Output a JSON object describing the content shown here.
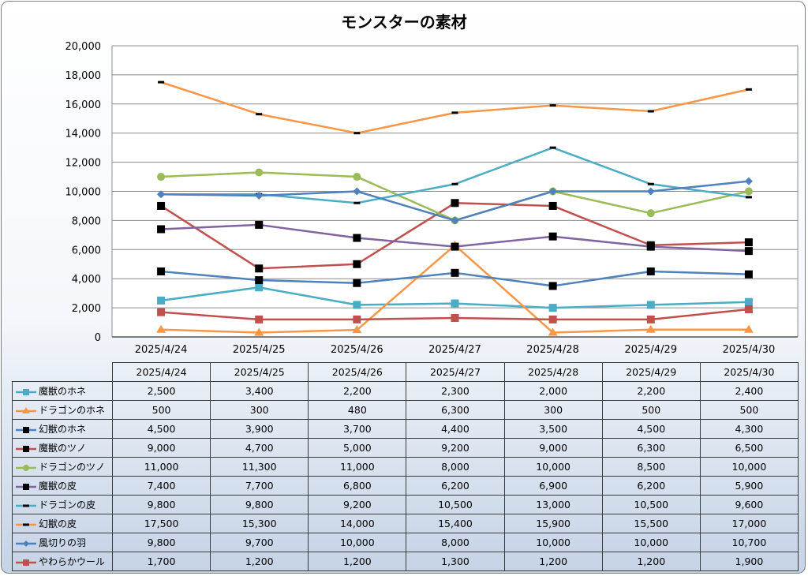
{
  "chart_data": {
    "type": "line",
    "title": "モンスターの素材",
    "categories": [
      "2025/4/24",
      "2025/4/25",
      "2025/4/26",
      "2025/4/27",
      "2025/4/28",
      "2025/4/29",
      "2025/4/30"
    ],
    "ylim": [
      0,
      20000
    ],
    "yticks": [
      0,
      2000,
      4000,
      6000,
      8000,
      10000,
      12000,
      14000,
      16000,
      18000,
      20000
    ],
    "ytick_labels": [
      "0",
      "2,000",
      "4,000",
      "6,000",
      "8,000",
      "10,000",
      "12,000",
      "14,000",
      "16,000",
      "18,000",
      "20,000"
    ],
    "grid": true,
    "legend": "data-table",
    "series": [
      {
        "name": "魔獣のホネ",
        "color": "#4bacc6",
        "marker": "square",
        "marker_color": "#4bacc6",
        "values": [
          2500,
          3400,
          2200,
          2300,
          2000,
          2200,
          2400
        ],
        "labels": [
          "2,500",
          "3,400",
          "2,200",
          "2,300",
          "2,000",
          "2,200",
          "2,400"
        ]
      },
      {
        "name": "ドラゴンのホネ",
        "color": "#f79646",
        "marker": "triangle",
        "marker_color": "#f79646",
        "values": [
          500,
          300,
          480,
          6300,
          300,
          500,
          500
        ],
        "labels": [
          "500",
          "300",
          "480",
          "6,300",
          "300",
          "500",
          "500"
        ]
      },
      {
        "name": "幻獣のホネ",
        "color": "#4f81bd",
        "marker": "square",
        "marker_color": "#000000",
        "values": [
          4500,
          3900,
          3700,
          4400,
          3500,
          4500,
          4300
        ],
        "labels": [
          "4,500",
          "3,900",
          "3,700",
          "4,400",
          "3,500",
          "4,500",
          "4,300"
        ]
      },
      {
        "name": "魔獣のツノ",
        "color": "#c0504d",
        "marker": "square",
        "marker_color": "#000000",
        "values": [
          9000,
          4700,
          5000,
          9200,
          9000,
          6300,
          6500
        ],
        "labels": [
          "9,000",
          "4,700",
          "5,000",
          "9,200",
          "9,000",
          "6,300",
          "6,500"
        ]
      },
      {
        "name": "ドラゴンのツノ",
        "color": "#9bbb59",
        "marker": "circle",
        "marker_color": "#9bbb59",
        "values": [
          11000,
          11300,
          11000,
          8000,
          10000,
          8500,
          10000
        ],
        "labels": [
          "11,000",
          "11,300",
          "11,000",
          "8,000",
          "10,000",
          "8,500",
          "10,000"
        ]
      },
      {
        "name": "魔獣の皮",
        "color": "#8064a2",
        "marker": "square",
        "marker_color": "#000000",
        "values": [
          7400,
          7700,
          6800,
          6200,
          6900,
          6200,
          5900
        ],
        "labels": [
          "7,400",
          "7,700",
          "6,800",
          "6,200",
          "6,900",
          "6,200",
          "5,900"
        ]
      },
      {
        "name": "ドラゴンの皮",
        "color": "#4bacc6",
        "marker": "dash",
        "marker_color": "#000000",
        "values": [
          9800,
          9800,
          9200,
          10500,
          13000,
          10500,
          9600
        ],
        "labels": [
          "9,800",
          "9,800",
          "9,200",
          "10,500",
          "13,000",
          "10,500",
          "9,600"
        ]
      },
      {
        "name": "幻獣の皮",
        "color": "#f79646",
        "marker": "dash",
        "marker_color": "#000000",
        "values": [
          17500,
          15300,
          14000,
          15400,
          15900,
          15500,
          17000
        ],
        "labels": [
          "17,500",
          "15,300",
          "14,000",
          "15,400",
          "15,900",
          "15,500",
          "17,000"
        ]
      },
      {
        "name": "風切りの羽",
        "color": "#4f81bd",
        "marker": "diamond",
        "marker_color": "#4f81bd",
        "values": [
          9800,
          9700,
          10000,
          8000,
          10000,
          10000,
          10700
        ],
        "labels": [
          "9,800",
          "9,700",
          "10,000",
          "8,000",
          "10,000",
          "10,000",
          "10,700"
        ]
      },
      {
        "name": "やわらかウール",
        "color": "#c0504d",
        "marker": "square",
        "marker_color": "#c0504d",
        "values": [
          1700,
          1200,
          1200,
          1300,
          1200,
          1200,
          1900
        ],
        "labels": [
          "1,700",
          "1,200",
          "1,200",
          "1,300",
          "1,200",
          "1,200",
          "1,900"
        ]
      }
    ]
  }
}
